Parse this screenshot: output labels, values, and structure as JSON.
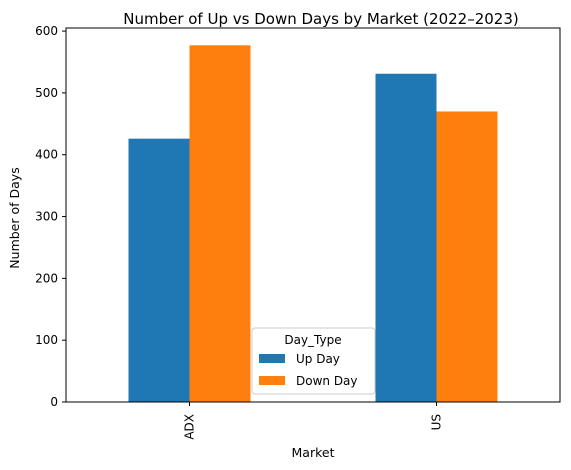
{
  "chart_data": {
    "type": "bar",
    "title": "Number of Up vs Down Days by Market (2022–2023)",
    "xlabel": "Market",
    "ylabel": "Number of Days",
    "categories": [
      "ADX",
      "US"
    ],
    "series": [
      {
        "name": "Up Day",
        "values": [
          426,
          531
        ],
        "color": "#1f77b4"
      },
      {
        "name": "Down Day",
        "values": [
          577,
          470
        ],
        "color": "#ff7f0e"
      }
    ],
    "ylim": [
      0,
      605
    ],
    "yticks": [
      "0",
      "100",
      "200",
      "300",
      "400",
      "500",
      "600"
    ],
    "legend": {
      "title": "Day_Type",
      "placement": "bottom-center"
    },
    "grid": false
  }
}
